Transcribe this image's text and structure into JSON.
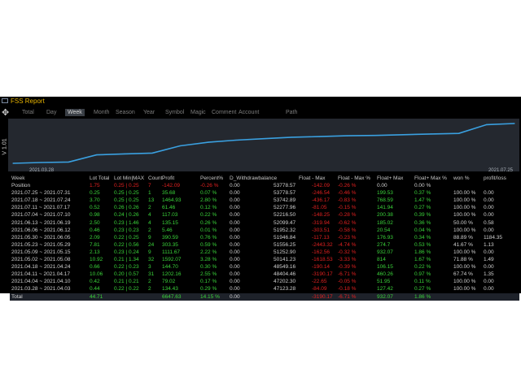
{
  "window": {
    "title": "FSS Report",
    "vertical_label": "V 1.01",
    "tabs": [
      "Total",
      "Day",
      "Week",
      "Month",
      "Season",
      "Year",
      "Symbol",
      "Magic",
      "Comment",
      "Account",
      "Path"
    ],
    "active_tab": "Week"
  },
  "chart": {
    "start_date": "2021.03.28",
    "end_date": "2021.07.25",
    "line_color": "#3aa0e0",
    "background": "#24282f"
  },
  "chart_data": {
    "type": "line",
    "x": [
      "2021.03.28",
      "2021.04.03",
      "2021.04.10",
      "2021.04.17",
      "2021.04.24",
      "2021.05.01",
      "2021.05.08",
      "2021.05.15",
      "2021.05.22",
      "2021.05.29",
      "2021.06.05",
      "2021.06.12",
      "2021.06.19",
      "2021.06.26",
      "2021.07.03",
      "2021.07.10",
      "2021.07.17",
      "2021.07.24",
      "2021.07.25"
    ],
    "values": [
      0,
      134.43,
      213.45,
      1415.61,
      1575.71,
      1715.71,
      2914.06,
      3512.06,
      3864.09,
      4108.61,
      4354.55,
      4469.57,
      4604.57,
      4650.47,
      4777.51,
      4898.78,
      4991.89,
      6454.52,
      6647.63
    ]
  },
  "table": {
    "headers": [
      "Week",
      "Lot Total",
      "Lot Min|MAX",
      "Count",
      "Profit",
      "Percent%",
      "D_Withdrawbalance",
      "Float - Max",
      "Float - Max %",
      "Float+ Max",
      "Float+ Max %",
      "won %",
      "profit/loss"
    ],
    "position_row": [
      "Position",
      "1.75",
      "0.25 | 0.25",
      "7",
      "-142.09",
      "-0.26 %",
      "0.00",
      "53778.57",
      "-142.09",
      "-0.26 %",
      "0.00",
      "0.00 %",
      ""
    ],
    "rows": [
      [
        "2021.07.25 ~ 2021.07.31",
        "0.25",
        "0.25 | 0.25",
        "1",
        "35.68",
        "0.07 %",
        "0.00",
        "53778.57",
        "-246.54",
        "-0.46 %",
        "199.53",
        "0.37 %",
        "100.00 %",
        "0.00"
      ],
      [
        "2021.07.18 ~ 2021.07.24",
        "3.70",
        "0.25 | 0.25",
        "13",
        "1464.93",
        "2.80 %",
        "0.00",
        "53742.89",
        "-436.17",
        "-0.83 %",
        "768.59",
        "1.47 %",
        "100.00 %",
        "0.00"
      ],
      [
        "2021.07.11 ~ 2021.07.17",
        "0.52",
        "0.26 | 0.26",
        "2",
        "61.46",
        "0.12 %",
        "0.00",
        "52277.96",
        "-81.05",
        "-0.15 %",
        "141.94",
        "0.27 %",
        "100.00 %",
        "0.00"
      ],
      [
        "2021.07.04 ~ 2021.07.10",
        "0.98",
        "0.24 | 0.26",
        "4",
        "117.03",
        "0.22 %",
        "0.00",
        "52216.50",
        "-148.25",
        "-0.28 %",
        "200.38",
        "0.39 %",
        "100.00 %",
        "0.00"
      ],
      [
        "2021.06.13 ~ 2021.06.19",
        "2.50",
        "0.23 | 1.46",
        "4",
        "135.15",
        "0.26 %",
        "0.00",
        "52099.47",
        "-319.94",
        "-0.62 %",
        "185.02",
        "0.36 %",
        "50.00 %",
        "0.58"
      ],
      [
        "2021.06.06 ~ 2021.06.12",
        "0.46",
        "0.23 | 0.23",
        "2",
        "5.46",
        "0.01 %",
        "0.00",
        "51952.32",
        "-303.51",
        "-0.58 %",
        "20.54",
        "0.04 %",
        "100.00 %",
        "0.00"
      ],
      [
        "2021.05.30 ~ 2021.06.05",
        "2.09",
        "0.22 | 0.25",
        "9",
        "390.59",
        "0.76 %",
        "0.00",
        "51946.84",
        "-117.13",
        "-0.23 %",
        "176.93",
        "0.34 %",
        "88.89 %",
        "1184.35"
      ],
      [
        "2021.05.23 ~ 2021.05.29",
        "7.81",
        "0.22 | 0.56",
        "24",
        "303.35",
        "0.59 %",
        "0.00",
        "51556.25",
        "-2443.32",
        "-4.74 %",
        "274.7",
        "0.53 %",
        "41.67 %",
        "1.13"
      ],
      [
        "2021.05.09 ~ 2021.05.15",
        "2.13",
        "0.23 | 0.24",
        "9",
        "1111.67",
        "2.22 %",
        "0.00",
        "51252.90",
        "-162.56",
        "-0.32 %",
        "932.07",
        "1.86 %",
        "100.00 %",
        "0.00"
      ],
      [
        "2021.05.02 ~ 2021.05.08",
        "10.92",
        "0.21 | 1.34",
        "32",
        "1592.07",
        "3.28 %",
        "0.00",
        "50141.23",
        "-1618.53",
        "-3.33 %",
        "814",
        "1.67 %",
        "71.88 %",
        "1.49"
      ],
      [
        "2021.04.18 ~ 2021.04.24",
        "0.66",
        "0.22 | 0.23",
        "3",
        "144.70",
        "0.30 %",
        "0.00",
        "48549.16",
        "-190.14",
        "-0.39 %",
        "106.15",
        "0.22 %",
        "100.00 %",
        "0.00"
      ],
      [
        "2021.04.11 ~ 2021.04.17",
        "10.06",
        "0.20 | 0.57",
        "31",
        "1202.16",
        "2.55 %",
        "0.00",
        "48404.46",
        "-3190.17",
        "-6.71 %",
        "460.26",
        "0.97 %",
        "67.74 %",
        "1.35"
      ],
      [
        "2021.04.04 ~ 2021.04.10",
        "0.42",
        "0.21 | 0.21",
        "2",
        "79.02",
        "0.17 %",
        "0.00",
        "47202.30",
        "-22.65",
        "-0.05 %",
        "51.95",
        "0.11 %",
        "100.00 %",
        "0.00"
      ],
      [
        "2021.03.28 ~ 2021.04.03",
        "0.44",
        "0.22 | 0.22",
        "2",
        "134.43",
        "0.29 %",
        "0.00",
        "47123.28",
        "-84.09",
        "-0.18 %",
        "127.42",
        "0.27 %",
        "100.00 %",
        "0.00"
      ]
    ],
    "total_row": [
      "Total",
      "44.71",
      "",
      "",
      "6647.63",
      "14.15 %",
      "0.00",
      "",
      "-3190.17",
      "-6.71 %",
      "932.07",
      "1.86 %",
      "",
      ""
    ]
  }
}
